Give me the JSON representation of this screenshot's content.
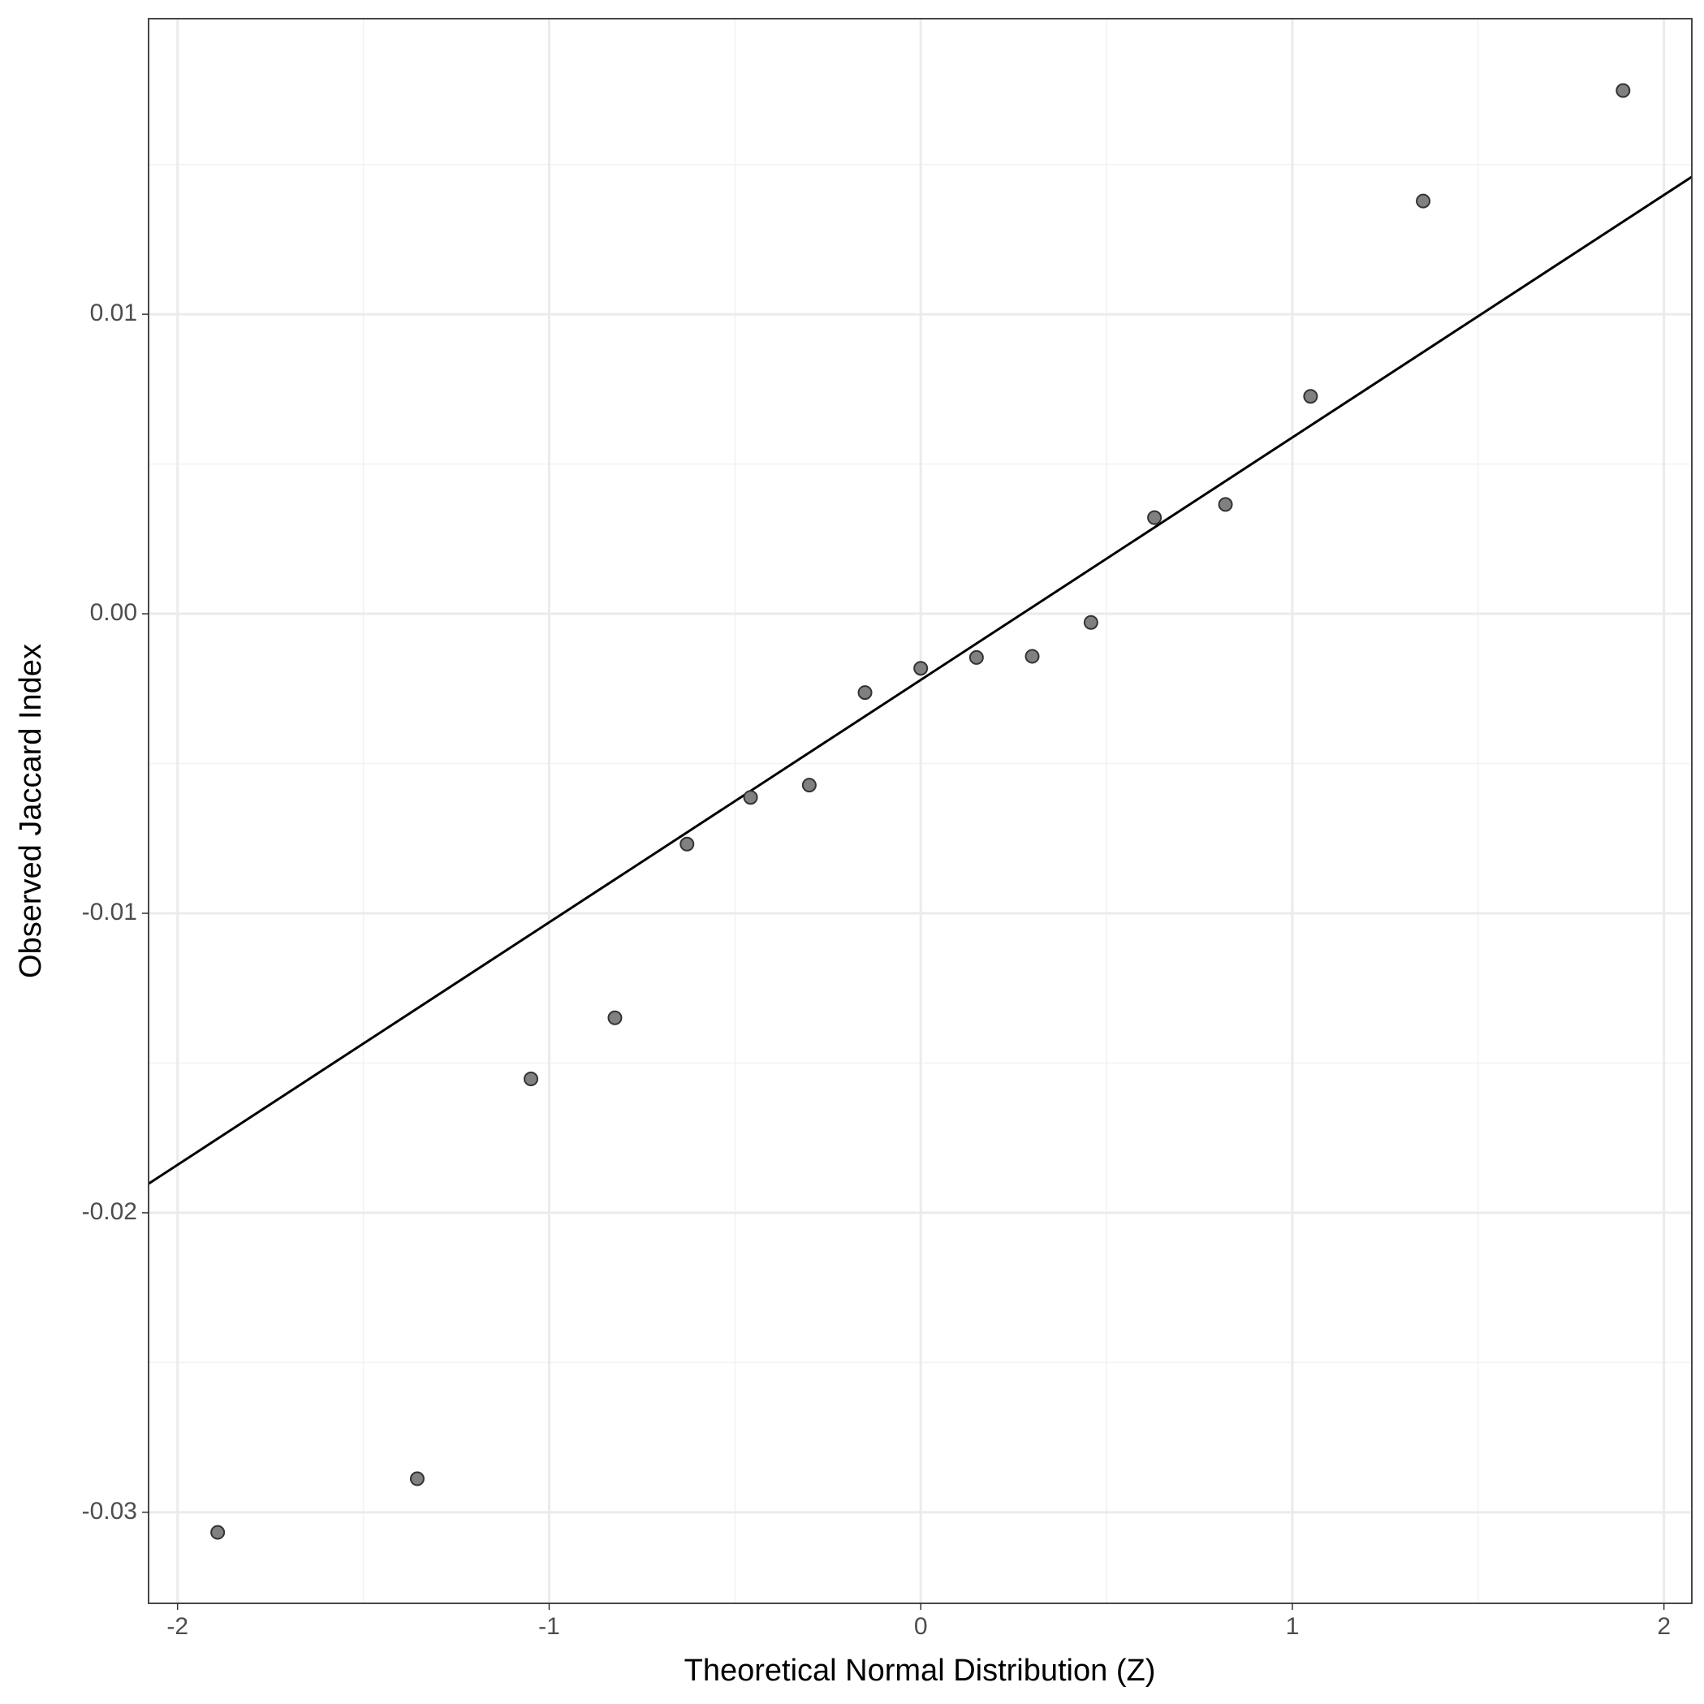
{
  "chart_data": {
    "type": "scatter",
    "x_label": "Theoretical Normal Distribution (Z)",
    "y_label": "Observed Jaccard Index",
    "x": [
      -1.892,
      -1.355,
      -1.049,
      -0.823,
      -0.629,
      -0.458,
      -0.3,
      -0.15,
      0,
      0.15,
      0.3,
      0.458,
      0.629,
      0.82,
      1.049,
      1.352,
      1.89
    ],
    "values": [
      -0.03067,
      -0.02888,
      -0.01553,
      -0.01349,
      -0.00769,
      -0.00613,
      -0.00572,
      -0.00263,
      -0.00182,
      -0.00146,
      -0.00142,
      -0.00029,
      0.00321,
      0.00365,
      0.00726,
      0.01378,
      0.01747
    ],
    "color": "#808080",
    "reference_line": {
      "x": [
        -2.078,
        2.075
      ],
      "y": [
        -0.01903,
        0.01459
      ],
      "color": "#000000"
    },
    "xlim": [
      -2.078,
      2.075
    ],
    "ylim": [
      -0.03304,
      0.01987
    ],
    "xticks": [
      -2,
      -1,
      0,
      1,
      2
    ],
    "yticks": [
      -0.03,
      -0.02,
      -0.01,
      {
        "value": 0,
        "label": "0.00"
      },
      0.01
    ],
    "minor_xticks": [
      -1.5,
      -0.5,
      0.5,
      1.5
    ],
    "minor_yticks": [
      -0.025,
      -0.015,
      -0.005,
      0.005,
      0.015
    ],
    "grid": true
  }
}
